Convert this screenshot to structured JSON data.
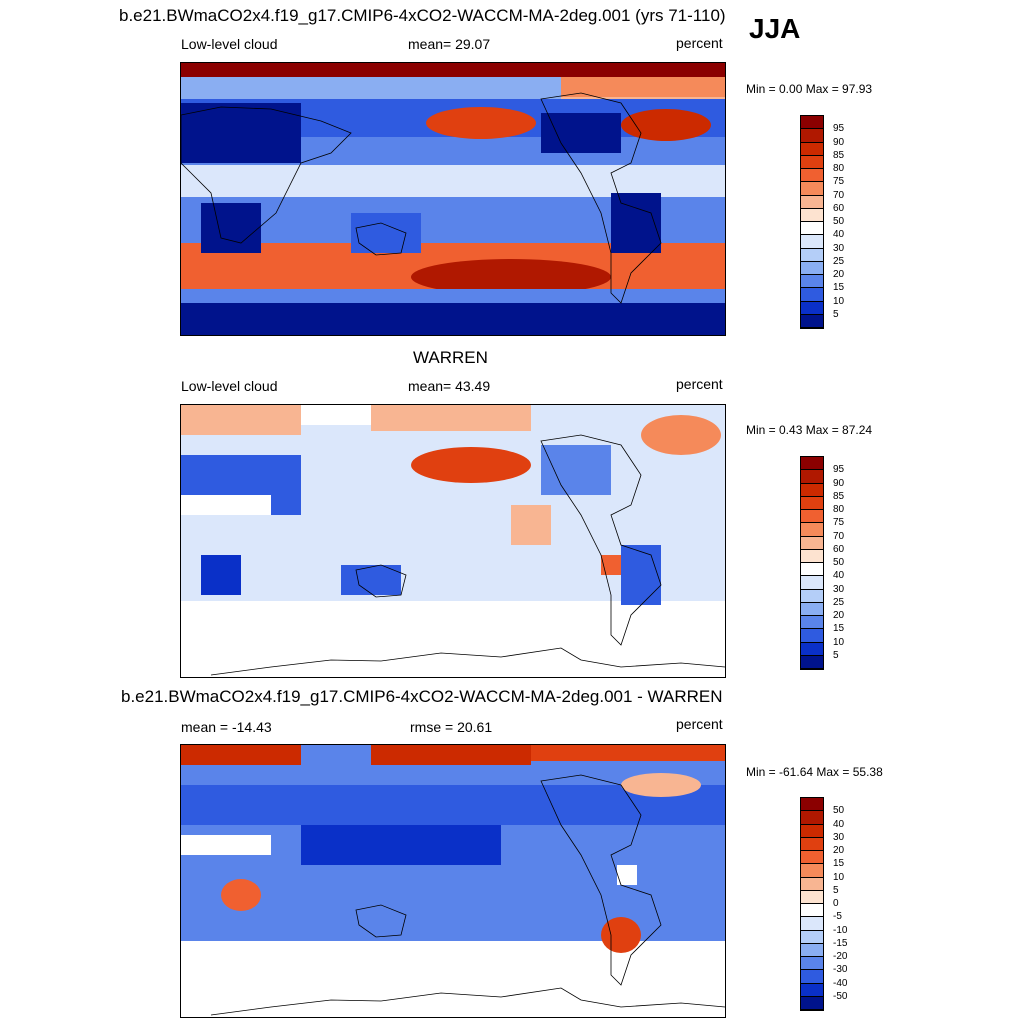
{
  "season": "JJA",
  "panels": [
    {
      "title": "b.e21.BWmaCO2x4.f19_g17.CMIP6-4xCO2-WACCM-MA-2deg.001 (yrs 71-110)",
      "left": "Low-level cloud",
      "center": "mean=  29.07",
      "right": "percent",
      "minmax": "Min =   0.00 Max =  97.93",
      "colorbar": {
        "labels": [
          "95",
          "90",
          "85",
          "80",
          "75",
          "70",
          "60",
          "50",
          "40",
          "30",
          "25",
          "20",
          "15",
          "10",
          "5"
        ],
        "colors": [
          "#8b0000",
          "#b01800",
          "#cc2a00",
          "#e04010",
          "#f06030",
          "#f58a5a",
          "#f8b592",
          "#fde3d0",
          "#ffffff",
          "#dbe7fb",
          "#b4cef8",
          "#8aaef2",
          "#5a84ea",
          "#2f5be0",
          "#0a30c8",
          "#00138c"
        ]
      }
    },
    {
      "title": "WARREN",
      "left": "Low-level cloud",
      "center": "mean=  43.49",
      "right": "percent",
      "minmax": "Min =   0.43 Max =  87.24",
      "colorbar": {
        "labels": [
          "95",
          "90",
          "85",
          "80",
          "75",
          "70",
          "60",
          "50",
          "40",
          "30",
          "25",
          "20",
          "15",
          "10",
          "5"
        ],
        "colors": [
          "#8b0000",
          "#b01800",
          "#cc2a00",
          "#e04010",
          "#f06030",
          "#f58a5a",
          "#f8b592",
          "#fde3d0",
          "#ffffff",
          "#dbe7fb",
          "#b4cef8",
          "#8aaef2",
          "#5a84ea",
          "#2f5be0",
          "#0a30c8",
          "#00138c"
        ]
      }
    },
    {
      "title": "b.e21.BWmaCO2x4.f19_g17.CMIP6-4xCO2-WACCM-MA-2deg.001 - WARREN",
      "left": "mean = -14.43",
      "center": "rmse =  20.61",
      "right": "percent",
      "minmax": "Min = -61.64 Max =  55.38",
      "colorbar": {
        "labels": [
          "50",
          "40",
          "30",
          "20",
          "15",
          "10",
          "5",
          "0",
          "-5",
          "-10",
          "-15",
          "-20",
          "-30",
          "-40",
          "-50"
        ],
        "colors": [
          "#8b0000",
          "#b01800",
          "#cc2a00",
          "#e04010",
          "#f06030",
          "#f58a5a",
          "#f8b592",
          "#fde3d0",
          "#ffffff",
          "#dbe7fb",
          "#b4cef8",
          "#8aaef2",
          "#5a84ea",
          "#2f5be0",
          "#0a30c8",
          "#00138c"
        ]
      }
    }
  ]
}
